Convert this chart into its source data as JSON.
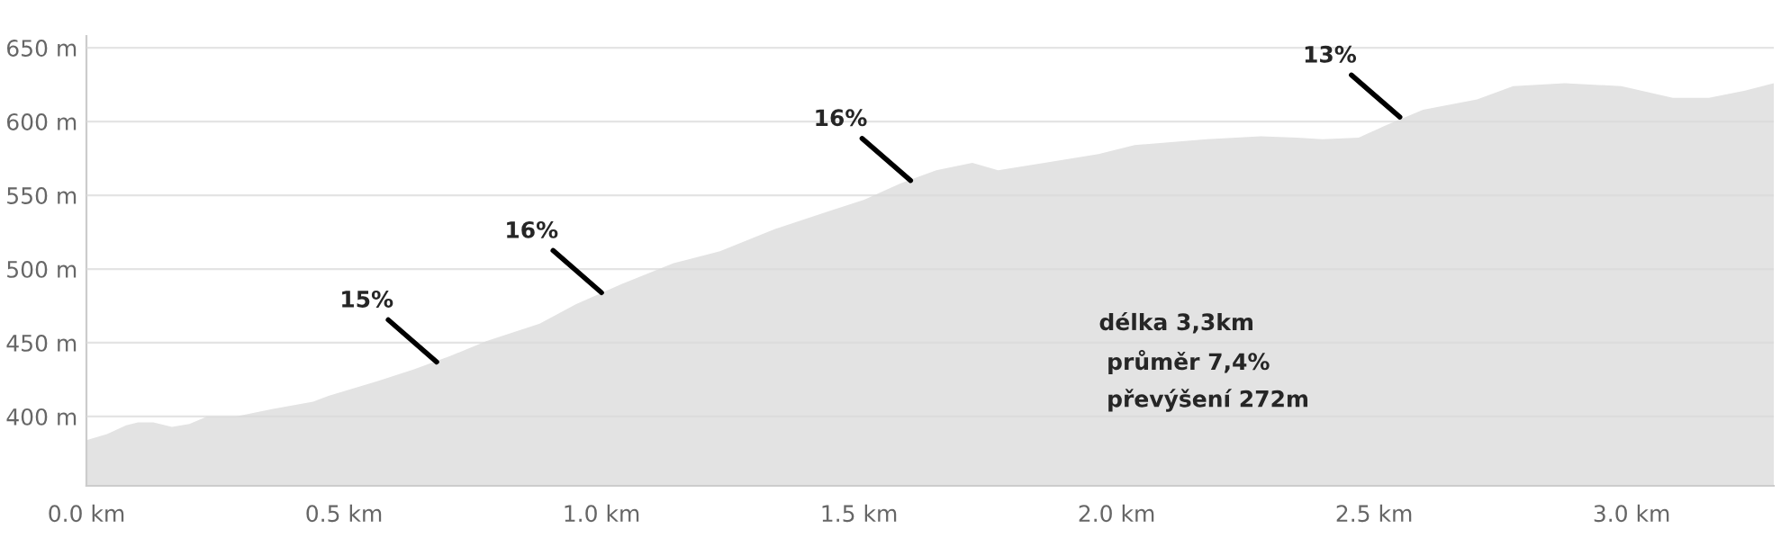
{
  "chart_data": {
    "type": "area",
    "color": "#e3e3e3",
    "x": [
      0,
      0.04,
      0.077,
      0.1,
      0.13,
      0.166,
      0.2,
      0.234,
      0.29,
      0.36,
      0.44,
      0.47,
      0.566,
      0.636,
      0.706,
      0.776,
      0.88,
      0.95,
      1.04,
      1.14,
      1.23,
      1.336,
      1.44,
      1.51,
      1.58,
      1.65,
      1.72,
      1.77,
      1.86,
      1.965,
      2.035,
      2.175,
      2.28,
      2.35,
      2.4,
      2.47,
      2.52,
      2.595,
      2.7,
      2.77,
      2.87,
      2.98,
      3.08,
      3.15,
      3.22,
      3.276
    ],
    "values": [
      384,
      388,
      394,
      396,
      396,
      393,
      395,
      400,
      400,
      405,
      410,
      414,
      424,
      432,
      441,
      451,
      463,
      476,
      490,
      504,
      512,
      527,
      539,
      547,
      558,
      567,
      572,
      567,
      572,
      578,
      584,
      588,
      590,
      589,
      588,
      589,
      597,
      608,
      615,
      624,
      626,
      624,
      616,
      616,
      621,
      626
    ],
    "xlim": [
      0,
      3.276
    ],
    "ylim": [
      353,
      658
    ],
    "xticks": [
      {
        "value": 0,
        "label": "0.0 km"
      },
      {
        "value": 0.5,
        "label": "0.5 km"
      },
      {
        "value": 1,
        "label": "1.0 km"
      },
      {
        "value": 1.5,
        "label": "1.5 km"
      },
      {
        "value": 2,
        "label": "2.0 km"
      },
      {
        "value": 2.5,
        "label": "2.5 km"
      },
      {
        "value": 3,
        "label": "3.0 km"
      }
    ],
    "yticks": [
      {
        "value": 400,
        "label": "400 m"
      },
      {
        "value": 450,
        "label": "450 m"
      },
      {
        "value": 500,
        "label": "500 m"
      },
      {
        "value": 550,
        "label": "550 m"
      },
      {
        "value": 600,
        "label": "600 m"
      },
      {
        "value": 650,
        "label": "650 m"
      }
    ],
    "grid": "y",
    "annotations": [
      {
        "text": "15%",
        "x": 0.68,
        "y": 437
      },
      {
        "text": "16%",
        "x": 1.0,
        "y": 484
      },
      {
        "text": "16%",
        "x": 1.6,
        "y": 560
      },
      {
        "text": "13%",
        "x": 2.55,
        "y": 603
      },
      "délka 3,3km",
      " průměr 7,4%",
      " převýšení 272m"
    ]
  }
}
